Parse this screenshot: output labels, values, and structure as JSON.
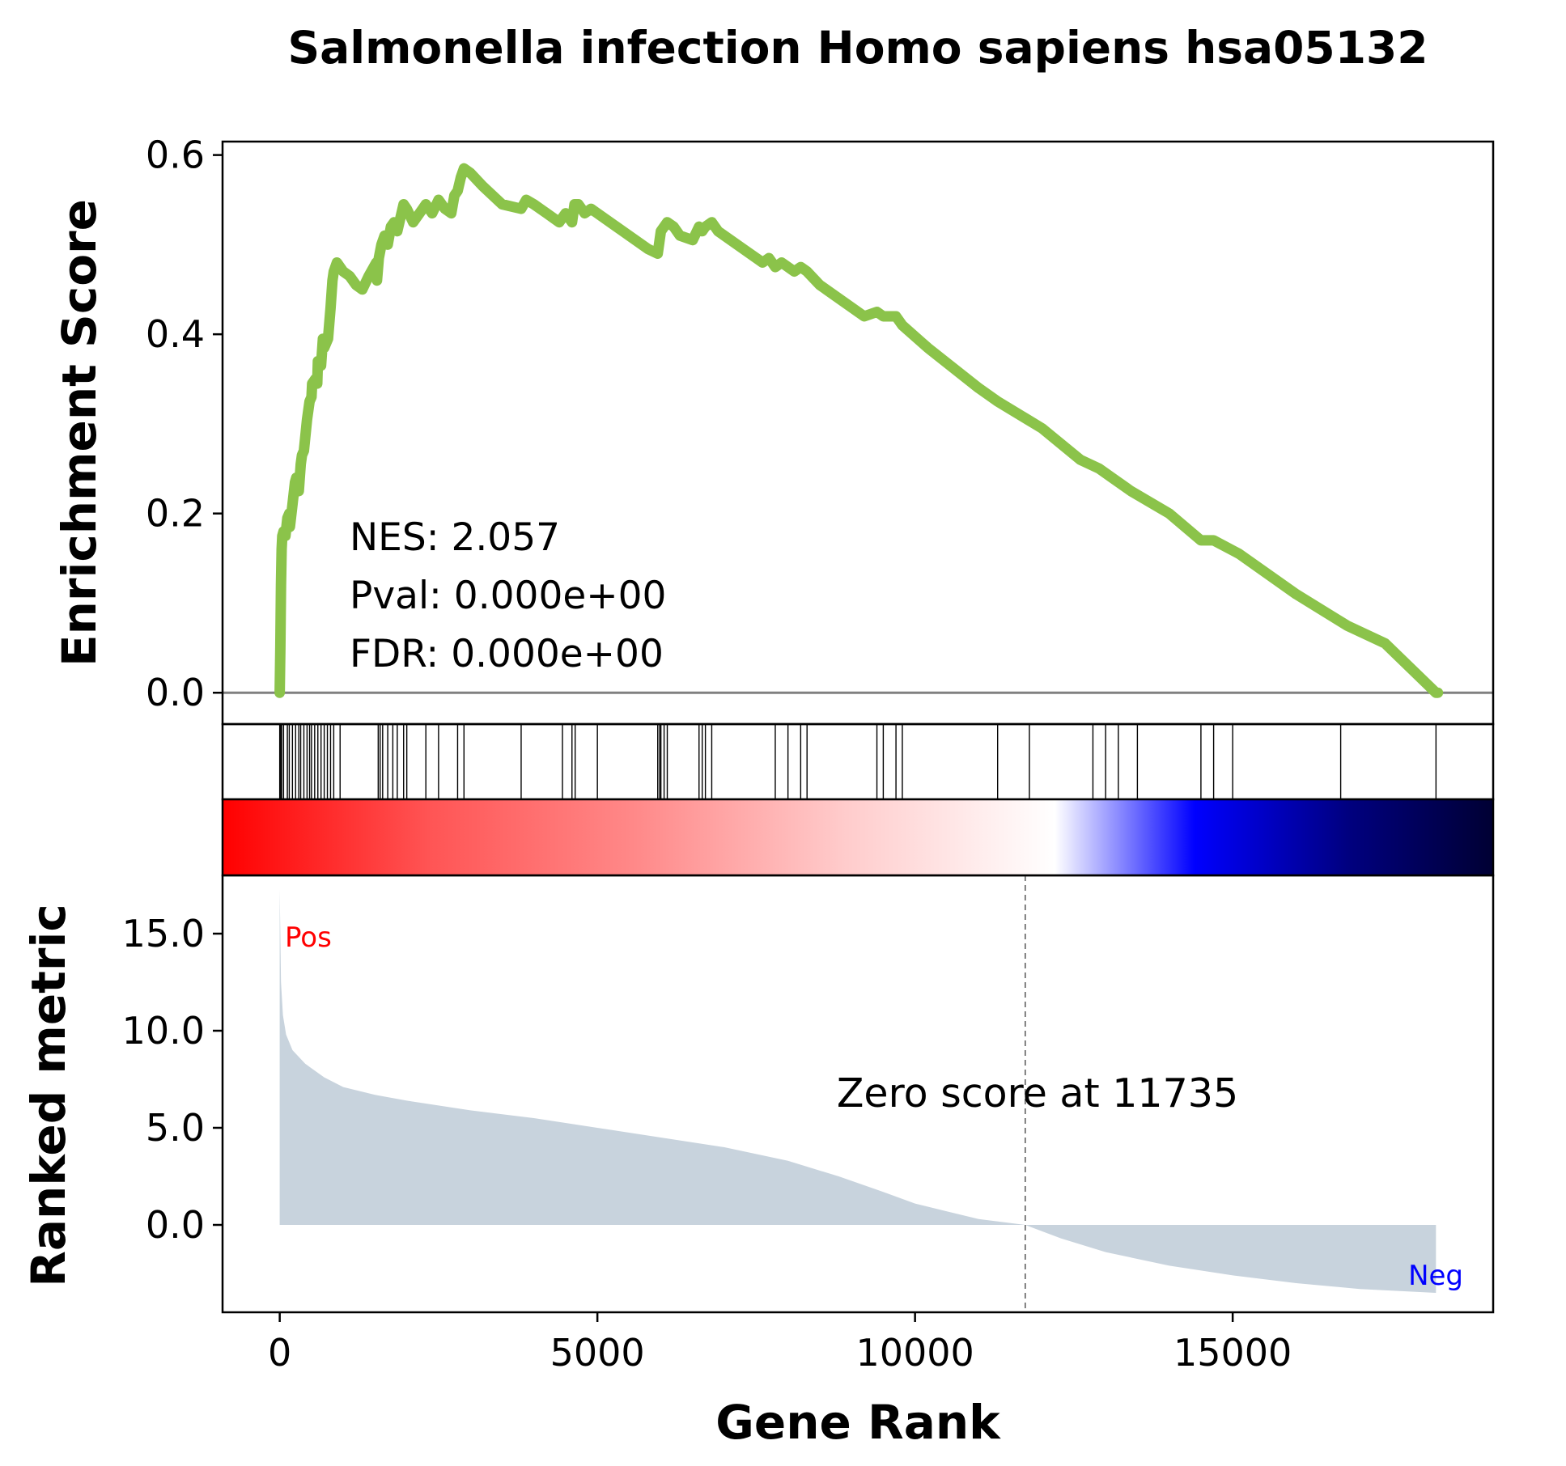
{
  "chart_data": {
    "type": "line",
    "title": "Salmonella infection Homo sapiens hsa05132",
    "xlabel": "Gene Rank",
    "xlim": [
      -900,
      19100
    ],
    "xticks": [
      0,
      5000,
      10000,
      15000
    ],
    "xtick_labels": [
      "0",
      "5000",
      "10000",
      "15000"
    ],
    "enrichment": {
      "ylabel": "Enrichment Score",
      "ylim": [
        -0.035,
        0.615
      ],
      "yticks": [
        0.0,
        0.2,
        0.4,
        0.6
      ],
      "ytick_labels": [
        "0.0",
        "0.2",
        "0.4",
        "0.6"
      ],
      "color": "#8BC34A",
      "baseline": 0,
      "stats": {
        "nes": "NES: 2.057",
        "pval": "Pval: 0.000e+00",
        "fdr": "FDR: 0.000e+00"
      },
      "x": [
        0,
        10,
        20,
        30,
        40,
        60,
        90,
        120,
        150,
        160,
        200,
        240,
        260,
        300,
        330,
        350,
        380,
        430,
        470,
        500,
        510,
        560,
        590,
        600,
        650,
        680,
        700,
        760,
        800,
        830,
        850,
        900,
        950,
        1000,
        1100,
        1200,
        1300,
        1400,
        1520,
        1530,
        1560,
        1600,
        1650,
        1700,
        1750,
        1800,
        1850,
        1900,
        1950,
        2000,
        2100,
        2250,
        2300,
        2400,
        2500,
        2600,
        2700,
        2750,
        2800,
        2850,
        2900,
        3000,
        3200,
        3500,
        3800,
        3880,
        4000,
        4200,
        4400,
        4500,
        4600,
        4640,
        4700,
        4800,
        4900,
        5200,
        5500,
        5800,
        5950,
        6000,
        6100,
        6200,
        6300,
        6500,
        6600,
        6650,
        6700,
        6800,
        6900,
        7000,
        7300,
        7600,
        7700,
        7800,
        7900,
        8100,
        8200,
        8300,
        8500,
        8800,
        9200,
        9400,
        9500,
        9700,
        9800,
        10200,
        11000,
        11300,
        12000,
        12600,
        12900,
        13100,
        13400,
        14000,
        14500,
        14700,
        15100,
        16000,
        16800,
        17400,
        18200,
        18230
      ],
      "y": [
        0.0,
        0.05,
        0.12,
        0.16,
        0.175,
        0.18,
        0.175,
        0.195,
        0.2,
        0.185,
        0.21,
        0.235,
        0.24,
        0.225,
        0.255,
        0.265,
        0.27,
        0.305,
        0.325,
        0.33,
        0.345,
        0.35,
        0.345,
        0.37,
        0.365,
        0.395,
        0.385,
        0.395,
        0.43,
        0.46,
        0.47,
        0.48,
        0.475,
        0.47,
        0.465,
        0.455,
        0.45,
        0.465,
        0.48,
        0.46,
        0.485,
        0.5,
        0.51,
        0.5,
        0.52,
        0.525,
        0.515,
        0.53,
        0.545,
        0.54,
        0.525,
        0.54,
        0.545,
        0.535,
        0.55,
        0.54,
        0.535,
        0.555,
        0.56,
        0.575,
        0.585,
        0.58,
        0.565,
        0.545,
        0.54,
        0.55,
        0.545,
        0.535,
        0.525,
        0.535,
        0.525,
        0.545,
        0.545,
        0.535,
        0.54,
        0.525,
        0.51,
        0.495,
        0.49,
        0.515,
        0.525,
        0.52,
        0.51,
        0.505,
        0.52,
        0.515,
        0.52,
        0.525,
        0.515,
        0.51,
        0.495,
        0.48,
        0.485,
        0.475,
        0.48,
        0.47,
        0.475,
        0.47,
        0.455,
        0.44,
        0.42,
        0.425,
        0.42,
        0.42,
        0.41,
        0.385,
        0.34,
        0.325,
        0.295,
        0.26,
        0.25,
        0.24,
        0.225,
        0.2,
        0.17,
        0.17,
        0.155,
        0.11,
        0.075,
        0.055,
        0.0,
        0.0
      ]
    },
    "hits": [
      0,
      15,
      30,
      60,
      120,
      150,
      200,
      250,
      300,
      330,
      380,
      430,
      470,
      500,
      550,
      600,
      650,
      700,
      750,
      800,
      850,
      950,
      1550,
      1580,
      1620,
      1700,
      1780,
      1850,
      1950,
      2000,
      2300,
      2500,
      2800,
      2900,
      3800,
      4450,
      4600,
      4650,
      5000,
      5950,
      5980,
      6000,
      6050,
      6100,
      6600,
      6650,
      6700,
      6800,
      7800,
      8000,
      8200,
      8300,
      9400,
      9500,
      9700,
      9800,
      11300,
      11800,
      12800,
      13000,
      13200,
      13500,
      14500,
      14700,
      15000,
      16700,
      18200
    ],
    "colorbar": [
      "#FF0000",
      "#FF5555",
      "#FF8A8A",
      "#FFCCCC",
      "#FFFFFF",
      "#0000FF",
      "#000080",
      "#000033"
    ],
    "ranked_metric": {
      "ylabel": "Ranked metric",
      "ylim": [
        -4.5,
        18.0
      ],
      "yticks": [
        0.0,
        5.0,
        10.0,
        15.0
      ],
      "ytick_labels": [
        "0.0",
        "5.0",
        "10.0",
        "15.0"
      ],
      "fill_color": "#C8D3DD",
      "x": [
        0,
        20,
        50,
        100,
        200,
        400,
        700,
        1000,
        1500,
        2000,
        3000,
        4000,
        5000,
        6000,
        7000,
        8000,
        8800,
        9500,
        10000,
        10500,
        11000,
        11735,
        12300,
        13000,
        14000,
        15000,
        16000,
        17000,
        18200
      ],
      "y": [
        17.3,
        12.5,
        10.8,
        9.8,
        9.0,
        8.3,
        7.6,
        7.1,
        6.7,
        6.4,
        5.9,
        5.5,
        5.0,
        4.5,
        4.0,
        3.3,
        2.5,
        1.7,
        1.1,
        0.7,
        0.3,
        0.0,
        -0.7,
        -1.4,
        -2.1,
        -2.6,
        -3.0,
        -3.3,
        -3.5
      ],
      "pos_label": "Pos",
      "neg_label": "Neg",
      "pos_color": "#FF0000",
      "neg_color": "#0000FF",
      "zero_rank": 11735,
      "zero_label": "Zero score at 11735"
    }
  }
}
